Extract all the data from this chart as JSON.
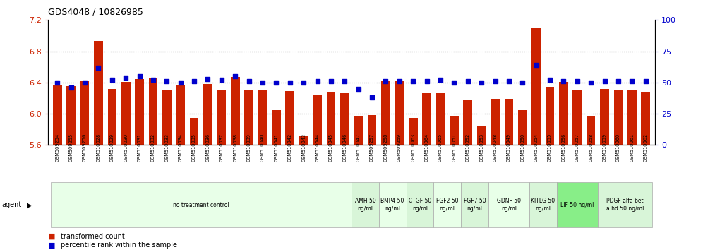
{
  "title": "GDS4048 / 10826985",
  "samples": [
    "GSM509254",
    "GSM509255",
    "GSM509256",
    "GSM510028",
    "GSM510029",
    "GSM510030",
    "GSM510031",
    "GSM510032",
    "GSM510033",
    "GSM510034",
    "GSM510035",
    "GSM510036",
    "GSM510037",
    "GSM510038",
    "GSM510039",
    "GSM510040",
    "GSM510041",
    "GSM510042",
    "GSM510043",
    "GSM510044",
    "GSM510045",
    "GSM510046",
    "GSM510047",
    "GSM509257",
    "GSM509258",
    "GSM509259",
    "GSM510063",
    "GSM510064",
    "GSM510065",
    "GSM510051",
    "GSM510052",
    "GSM510053",
    "GSM510048",
    "GSM510049",
    "GSM510050",
    "GSM510054",
    "GSM510055",
    "GSM510056",
    "GSM510057",
    "GSM510058",
    "GSM510059",
    "GSM510060",
    "GSM510061",
    "GSM510062"
  ],
  "bar_values": [
    6.37,
    6.35,
    6.42,
    6.93,
    6.32,
    6.41,
    6.44,
    6.46,
    6.31,
    6.37,
    5.95,
    6.38,
    6.31,
    6.47,
    6.31,
    6.31,
    6.05,
    6.29,
    5.72,
    6.24,
    6.28,
    6.26,
    5.97,
    5.98,
    6.42,
    6.43,
    5.95,
    6.27,
    6.27,
    5.97,
    6.18,
    5.85,
    6.19,
    6.19,
    6.05,
    7.1,
    6.34,
    6.41,
    6.31,
    5.97,
    6.32,
    6.31,
    6.31,
    6.28
  ],
  "percentile_values": [
    50,
    46,
    50,
    62,
    52,
    54,
    55,
    52,
    51,
    50,
    51,
    53,
    52,
    55,
    51,
    50,
    50,
    50,
    50,
    51,
    51,
    51,
    45,
    38,
    51,
    51,
    51,
    51,
    52,
    50,
    51,
    50,
    51,
    51,
    50,
    64,
    52,
    51,
    51,
    50,
    51,
    51,
    51,
    51
  ],
  "ylim_left": [
    5.6,
    7.2
  ],
  "ylim_right": [
    0,
    100
  ],
  "yticks_left": [
    5.6,
    6.0,
    6.4,
    6.8,
    7.2
  ],
  "yticks_right": [
    0,
    25,
    50,
    75,
    100
  ],
  "bar_color": "#cc2200",
  "dot_color": "#0000cc",
  "bar_bottom": 5.6,
  "agent_groups": [
    {
      "label": "no treatment control",
      "start": 0,
      "end": 22,
      "color": "#e8ffe8",
      "text_lines": 1
    },
    {
      "label": "AMH 50\nng/ml",
      "start": 22,
      "end": 24,
      "color": "#d8f5d8",
      "text_lines": 2
    },
    {
      "label": "BMP4 50\nng/ml",
      "start": 24,
      "end": 26,
      "color": "#e8ffe8",
      "text_lines": 2
    },
    {
      "label": "CTGF 50\nng/ml",
      "start": 26,
      "end": 28,
      "color": "#d8f5d8",
      "text_lines": 2
    },
    {
      "label": "FGF2 50\nng/ml",
      "start": 28,
      "end": 30,
      "color": "#e8ffe8",
      "text_lines": 2
    },
    {
      "label": "FGF7 50\nng/ml",
      "start": 30,
      "end": 32,
      "color": "#d8f5d8",
      "text_lines": 2
    },
    {
      "label": "GDNF 50\nng/ml",
      "start": 32,
      "end": 35,
      "color": "#e8ffe8",
      "text_lines": 2
    },
    {
      "label": "KITLG 50\nng/ml",
      "start": 35,
      "end": 37,
      "color": "#d8f5d8",
      "text_lines": 2
    },
    {
      "label": "LIF 50 ng/ml",
      "start": 37,
      "end": 40,
      "color": "#88ee88",
      "text_lines": 1
    },
    {
      "label": "PDGF alfa bet\na hd 50 ng/ml",
      "start": 40,
      "end": 44,
      "color": "#d8f5d8",
      "text_lines": 2
    }
  ],
  "left_tick_color": "#cc2200",
  "right_tick_color": "#0000cc"
}
